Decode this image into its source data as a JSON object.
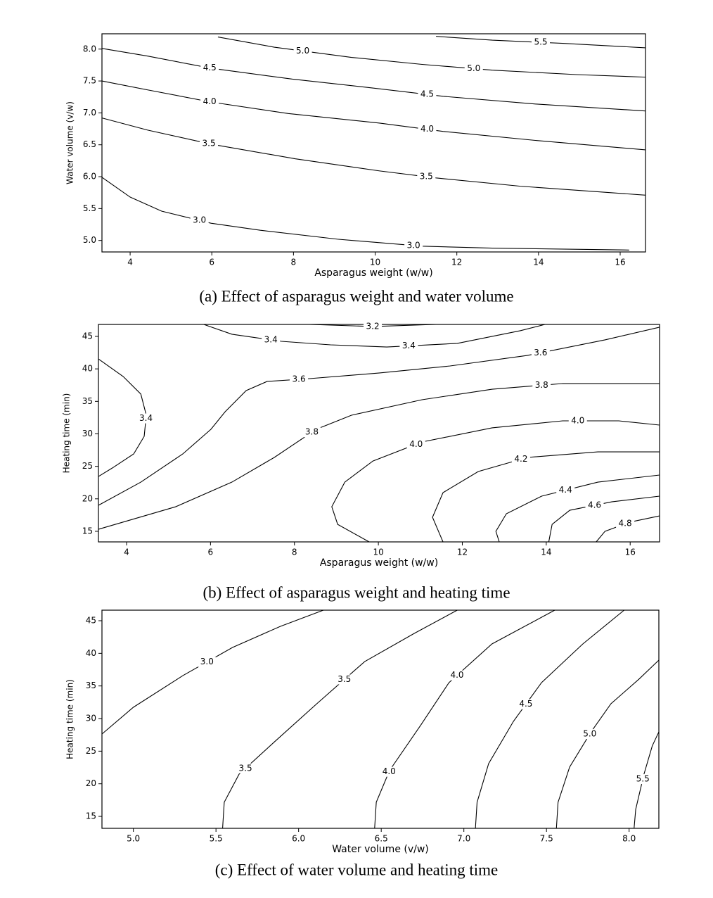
{
  "chart_data": [
    {
      "type": "contour",
      "caption": "(a)  Effect  of  asparagus  weight  and  water  volume",
      "xlabel": "Asparagus weight (w/w)",
      "ylabel": "Water volume (v/w)",
      "xlim": [
        3.31,
        16.62
      ],
      "ylim": [
        4.82,
        8.24
      ],
      "xticks": [
        4,
        6,
        8,
        10,
        12,
        14,
        16
      ],
      "yticks": [
        {
          "value": 5.0,
          "label": "5.0"
        },
        {
          "value": 5.5,
          "label": "5.5"
        },
        {
          "value": 6.0,
          "label": "6.0"
        },
        {
          "value": 6.5,
          "label": "6.5"
        },
        {
          "value": 7.0,
          "label": "7.0"
        },
        {
          "value": 7.5,
          "label": "7.5"
        },
        {
          "value": 8.0,
          "label": "8.0"
        }
      ],
      "series": [
        {
          "name": "3.0",
          "x": [
            3.31,
            4,
            4.77,
            5.98,
            7.19,
            9.08,
            11.15,
            12.87,
            16.22
          ],
          "y": [
            5.99,
            5.68,
            5.46,
            5.27,
            5.16,
            5.02,
            4.91,
            4.88,
            4.85
          ]
        },
        {
          "name": "3.5",
          "x": [
            3.31,
            4.43,
            5.98,
            8.05,
            10.11,
            11.49,
            13.56,
            16.62
          ],
          "y": [
            6.92,
            6.73,
            6.51,
            6.28,
            6.09,
            5.98,
            5.85,
            5.71
          ]
        },
        {
          "name": "4.0",
          "x": [
            3.31,
            4.43,
            5.98,
            7.87,
            10.11,
            11.66,
            13.9,
            16.62
          ],
          "y": [
            7.5,
            7.36,
            7.17,
            6.99,
            6.84,
            6.71,
            6.57,
            6.42
          ]
        },
        {
          "name": "4.5",
          "x": [
            3.31,
            4.43,
            5.98,
            7.96,
            9.94,
            11.66,
            13.9,
            16.62
          ],
          "y": [
            8.01,
            7.89,
            7.7,
            7.53,
            7.39,
            7.26,
            7.14,
            7.03
          ]
        },
        {
          "name": "5.0",
          "x": [
            6.15,
            7.53,
            9.42,
            11.15,
            12.87,
            14.93,
            16.62
          ],
          "y": [
            8.19,
            8.03,
            7.87,
            7.76,
            7.67,
            7.6,
            7.56
          ]
        },
        {
          "name": "5.5",
          "x": [
            11.49,
            12.87,
            14.59,
            16.62
          ],
          "y": [
            8.2,
            8.14,
            8.09,
            8.02
          ]
        }
      ]
    },
    {
      "type": "contour",
      "caption": "(b)  Effect  of  asparagus  weight  and  heating  time",
      "xlabel": "Asparagus weight (w/w)",
      "ylabel": "Heating time (min)",
      "xlim": [
        3.33,
        16.7
      ],
      "ylim": [
        13.37,
        46.84
      ],
      "xticks": [
        4,
        6,
        8,
        10,
        12,
        14,
        16
      ],
      "yticks": [
        15,
        20,
        25,
        30,
        35,
        40,
        45
      ],
      "series": [
        {
          "name": "3.2",
          "x": [
            8.36,
            9.87,
            11.37
          ],
          "y": [
            46.84,
            46.52,
            46.84
          ]
        },
        {
          "name": "3.4",
          "x": [
            5.84,
            6.51,
            7.69,
            8.86,
            10.2,
            11.88,
            13.38,
            13.97
          ],
          "y": [
            46.84,
            45.33,
            44.24,
            43.7,
            43.37,
            43.92,
            45.87,
            46.84
          ]
        },
        {
          "name": "3.4",
          "x": [
            3.33,
            3.92,
            4.34,
            4.47,
            4.42,
            4.17,
            3.66,
            3.33
          ],
          "y": [
            41.53,
            38.82,
            36.12,
            32.87,
            29.62,
            26.91,
            24.74,
            23.44
          ]
        },
        {
          "name": "3.6",
          "x": [
            16.7,
            15.4,
            13.55,
            11.71,
            10.03,
            8.36,
            7.35,
            6.85,
            6.35,
            6.01,
            5.34,
            4.34,
            3.33
          ],
          "y": [
            46.41,
            44.46,
            42.07,
            40.45,
            39.37,
            38.5,
            38.07,
            36.66,
            33.41,
            30.7,
            26.91,
            22.57,
            19.0
          ]
        },
        {
          "name": "3.8",
          "x": [
            16.7,
            14.39,
            12.71,
            11.04,
            9.36,
            8.52,
            7.52,
            6.51,
            5.17,
            3.33
          ],
          "y": [
            37.74,
            37.74,
            36.87,
            35.25,
            32.87,
            30.7,
            26.37,
            22.57,
            18.78,
            15.31
          ]
        },
        {
          "name": "4.0",
          "x": [
            16.7,
            15.73,
            14.39,
            12.71,
            11.04,
            9.87,
            9.2,
            8.89,
            9.03,
            9.78
          ],
          "y": [
            31.35,
            32.0,
            32.0,
            30.92,
            28.75,
            25.82,
            22.57,
            18.78,
            16.07,
            13.37
          ]
        },
        {
          "name": "4.2",
          "x": [
            16.7,
            15.23,
            13.55,
            12.38,
            11.54,
            11.29,
            11.54
          ],
          "y": [
            27.23,
            27.23,
            26.37,
            24.2,
            20.95,
            17.16,
            13.37
          ]
        },
        {
          "name": "4.4",
          "x": [
            16.7,
            15.23,
            13.89,
            13.05,
            12.8,
            12.88
          ],
          "y": [
            23.66,
            22.57,
            20.41,
            17.7,
            15.0,
            13.37
          ]
        },
        {
          "name": "4.6",
          "x": [
            16.7,
            15.56,
            14.56,
            14.14,
            14.06
          ],
          "y": [
            20.41,
            19.54,
            18.24,
            16.07,
            13.37
          ]
        },
        {
          "name": "4.8",
          "x": [
            16.7,
            15.98,
            15.4,
            15.19
          ],
          "y": [
            17.37,
            16.4,
            15.0,
            13.37
          ]
        }
      ]
    },
    {
      "type": "contour",
      "caption": "(c)  Effect  of  water  volume  and  heating  time",
      "xlabel": "Water volume (v/w)",
      "ylabel": "Heating time (min)",
      "xlim": [
        4.81,
        8.18
      ],
      "ylim": [
        13.17,
        46.62
      ],
      "xticks": [
        {
          "value": 5.0,
          "label": "5.0"
        },
        {
          "value": 5.5,
          "label": "5.5"
        },
        {
          "value": 6.0,
          "label": "6.0"
        },
        {
          "value": 6.5,
          "label": "6.5"
        },
        {
          "value": 7.0,
          "label": "7.0"
        },
        {
          "value": 7.5,
          "label": "7.5"
        },
        {
          "value": 8.0,
          "label": "8.0"
        }
      ],
      "yticks": [
        15,
        20,
        25,
        30,
        35,
        40,
        45
      ],
      "series": [
        {
          "name": "3.0",
          "x": [
            4.81,
            5.0,
            5.3,
            5.6,
            5.89,
            6.15
          ],
          "y": [
            27.63,
            31.73,
            36.59,
            40.9,
            44.14,
            46.62
          ]
        },
        {
          "name": "3.5",
          "x": [
            5.54,
            5.55,
            5.64,
            5.85,
            6.11,
            6.4,
            6.7,
            6.96
          ],
          "y": [
            13.17,
            17.17,
            21.48,
            26.34,
            32.27,
            38.74,
            43.06,
            46.62
          ]
        },
        {
          "name": "4.0",
          "x": [
            6.46,
            6.47,
            6.55,
            6.74,
            6.91,
            7.17,
            7.55
          ],
          "y": [
            13.17,
            17.17,
            22.02,
            29.03,
            35.51,
            41.44,
            46.62
          ]
        },
        {
          "name": "4.5",
          "x": [
            7.07,
            7.08,
            7.15,
            7.3,
            7.47,
            7.72,
            7.97
          ],
          "y": [
            13.17,
            17.17,
            23.1,
            29.57,
            35.51,
            41.44,
            46.62
          ]
        },
        {
          "name": "5.0",
          "x": [
            7.56,
            7.57,
            7.64,
            7.77,
            7.89,
            8.06,
            8.18
          ],
          "y": [
            13.17,
            17.17,
            22.56,
            27.96,
            32.27,
            36.05,
            38.96
          ]
        },
        {
          "name": "5.5",
          "x": [
            8.03,
            8.04,
            8.09,
            8.14,
            8.18
          ],
          "y": [
            13.17,
            16.09,
            21.48,
            25.8,
            27.96
          ]
        }
      ]
    }
  ]
}
